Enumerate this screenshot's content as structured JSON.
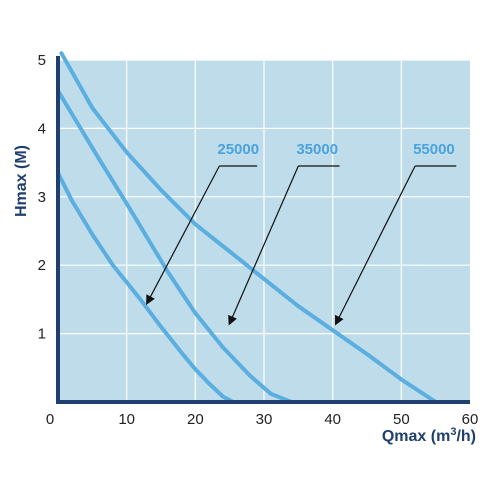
{
  "chart_data": {
    "type": "line",
    "title": "",
    "xlabel": "Qmax (m",
    "xlabel_sup": "3",
    "xlabel_tail": "/h)",
    "ylabel": "Hmax (M)",
    "xlim": [
      0,
      60
    ],
    "ylim": [
      0,
      5
    ],
    "xticks": [
      "0",
      "10",
      "20",
      "30",
      "40",
      "50",
      "60"
    ],
    "yticks": [
      "1",
      "2",
      "3",
      "4",
      "5"
    ],
    "grid": true,
    "colors": {
      "plot_background": "#bfdceb",
      "grid": "#ffffff",
      "axis": "#1f3f6e",
      "series": "#5aaee0",
      "label": "#4aa3df",
      "arrow": "#111111"
    },
    "series": [
      {
        "name": "25000",
        "x": [
          0,
          2,
          5,
          8,
          10,
          12,
          15,
          18,
          20,
          22,
          24,
          25.5
        ],
        "y": [
          3.35,
          2.95,
          2.45,
          2.0,
          1.75,
          1.5,
          1.1,
          0.72,
          0.48,
          0.27,
          0.08,
          0
        ]
      },
      {
        "name": "35000",
        "x": [
          0,
          3,
          6,
          10,
          13,
          16,
          20,
          24,
          28,
          31,
          34
        ],
        "y": [
          4.55,
          4.05,
          3.55,
          2.9,
          2.4,
          1.9,
          1.3,
          0.8,
          0.38,
          0.12,
          0
        ]
      },
      {
        "name": "55000",
        "x": [
          0.5,
          5,
          10,
          15,
          20,
          25,
          30,
          35,
          40,
          45,
          50,
          55
        ],
        "y": [
          5.1,
          4.3,
          3.65,
          3.1,
          2.6,
          2.2,
          1.8,
          1.4,
          1.05,
          0.7,
          0.33,
          0
        ]
      }
    ],
    "annotations": [
      {
        "text": "25000",
        "label_at": [
          23.5,
          3.45
        ],
        "line_to": [
          29,
          3.45
        ],
        "arrow_from": [
          23.5,
          3.45
        ],
        "arrow_to": [
          13,
          1.45
        ]
      },
      {
        "text": "35000",
        "label_at": [
          35,
          3.45
        ],
        "line_to": [
          41,
          3.45
        ],
        "arrow_from": [
          35,
          3.45
        ],
        "arrow_to": [
          25,
          1.15
        ]
      },
      {
        "text": "55000",
        "label_at": [
          52,
          3.45
        ],
        "line_to": [
          58,
          3.45
        ],
        "arrow_from": [
          52,
          3.45
        ],
        "arrow_to": [
          40.5,
          1.15
        ]
      }
    ]
  }
}
